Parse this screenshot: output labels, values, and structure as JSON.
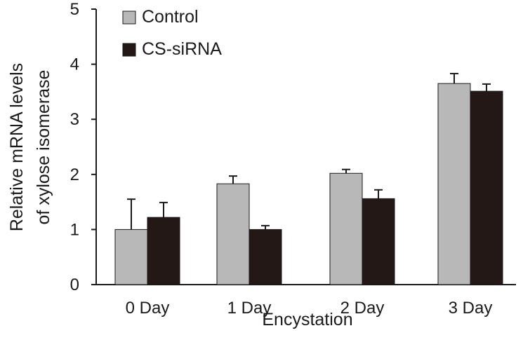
{
  "colors": {
    "control": "#b8b8b8",
    "cs_sirna": "#231815",
    "axis": "#1a1a1a",
    "background": "#ffffff"
  },
  "chart_data": {
    "type": "bar",
    "title": "",
    "xlabel": "Encystation",
    "ylabel_line1": "Relative mRNA levels",
    "ylabel_line2": "of xylose isomerase",
    "ylim": [
      0,
      5
    ],
    "yticks": [
      "0",
      "1",
      "2",
      "3",
      "4",
      "5"
    ],
    "categories": [
      "0 Day",
      "1 Day",
      "2 Day",
      "3 Day"
    ],
    "legend_position": "top-left",
    "series": [
      {
        "name": "Control",
        "values": [
          1.0,
          1.83,
          2.02,
          3.65
        ],
        "errors": [
          0.55,
          0.14,
          0.07,
          0.18
        ]
      },
      {
        "name": "CS-siRNA",
        "values": [
          1.22,
          1.0,
          1.56,
          3.51
        ],
        "errors": [
          0.27,
          0.07,
          0.16,
          0.13
        ]
      }
    ]
  }
}
